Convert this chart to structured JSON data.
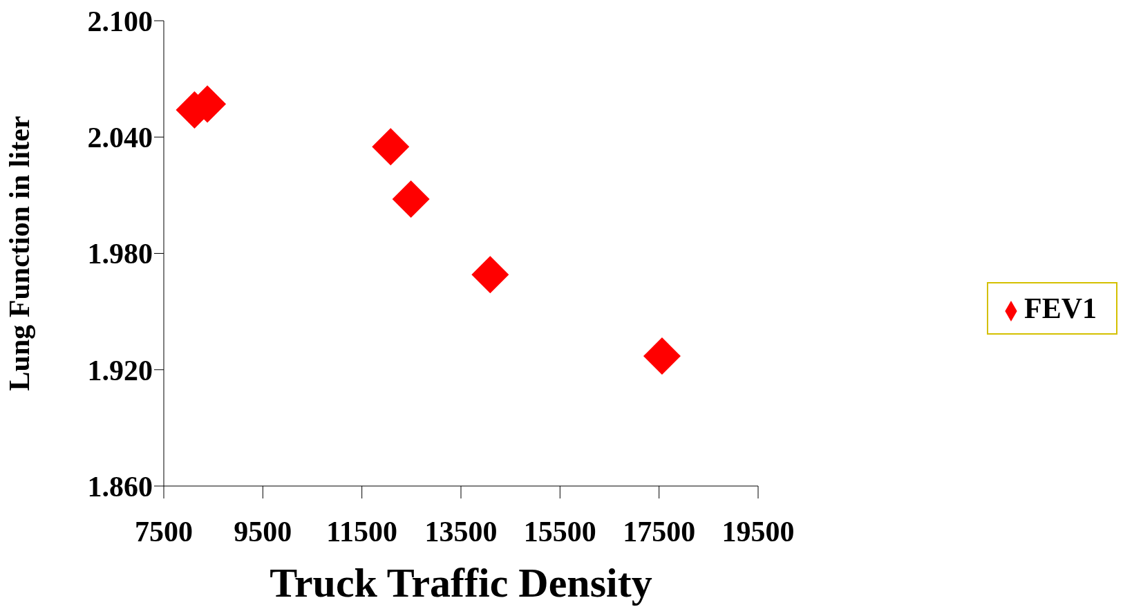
{
  "chart_data": {
    "type": "scatter",
    "xlabel": "Truck Traffic Density",
    "ylabel": "Lung Function in liter",
    "x": [
      8120,
      8380,
      12080,
      12490,
      14090,
      17560
    ],
    "series": [
      {
        "name": "FEV1",
        "color": "#ff0000",
        "values": [
          2.054,
          2.057,
          2.035,
          2.008,
          1.969,
          1.927
        ]
      }
    ],
    "xlim": [
      7500,
      19500
    ],
    "xticks": [
      7500,
      9500,
      11500,
      13500,
      15500,
      17500,
      19500
    ],
    "ylim": [
      1.86,
      2.1
    ],
    "yticks": [
      {
        "value": 1.86,
        "label": "1.860"
      },
      {
        "value": 1.92,
        "label": "1.920"
      },
      {
        "value": 1.98,
        "label": "1.980"
      },
      {
        "value": 2.04,
        "label": "2.040"
      },
      {
        "value": 2.1,
        "label": "2.100"
      }
    ],
    "marker": "diamond",
    "grid": false,
    "legend": "right"
  }
}
